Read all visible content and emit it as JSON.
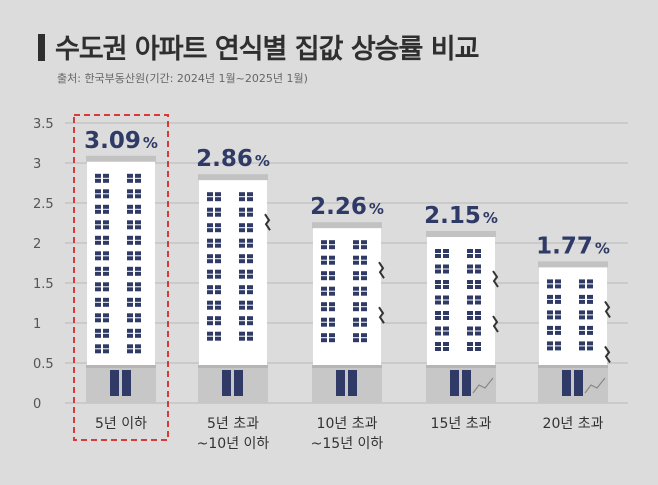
{
  "header": {
    "title": "수도권 아파트 연식별 집값 상승률 비교",
    "source": "출처: 한국부동산원(기간: 2024년 1월~2025년 1월)"
  },
  "colors": {
    "background": "#dcdcdc",
    "building": "#ffffff",
    "window": "#2f3a66",
    "roof": "#c2c2c2",
    "base": "#c7c7c7",
    "value_text": "#2f3a66",
    "highlight_border": "#d83a3a",
    "grid": "#b9b9b9"
  },
  "chart_data": {
    "type": "bar",
    "title": "수도권 아파트 연식별 집값 상승률 비교",
    "xlabel": "",
    "ylabel": "",
    "ylim": [
      0,
      3.5
    ],
    "yticks": [
      "0",
      "0.5",
      "1",
      "1.5",
      "2",
      "2.5",
      "3",
      "3.5"
    ],
    "grid": true,
    "bar_style": "apartment-building",
    "highlighted_category_index": 0,
    "categories": [
      [
        "5년 이하"
      ],
      [
        "5년 초과",
        "~10년 이하"
      ],
      [
        "10년 초과",
        "~15년 이하"
      ],
      [
        "15년 초과"
      ],
      [
        "20년 초과"
      ]
    ],
    "values": [
      3.09,
      2.86,
      2.26,
      2.15,
      1.77
    ],
    "value_numbers": [
      "3.09",
      "2.86",
      "2.26",
      "2.15",
      "1.77"
    ],
    "value_unit": "%"
  }
}
